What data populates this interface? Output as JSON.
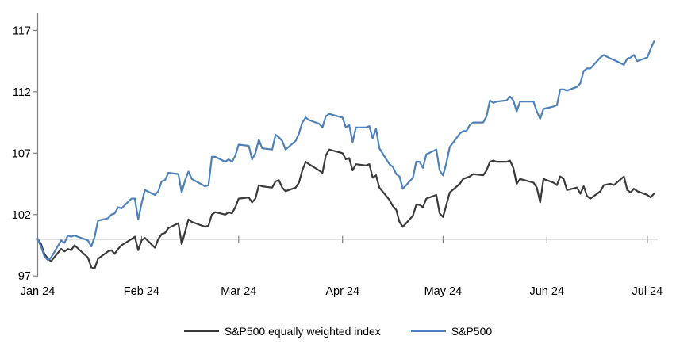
{
  "chart_data": {
    "type": "line",
    "title": "",
    "legend_position": "bottom-center",
    "background_color": "#ffffff",
    "y_axis": {
      "ticks": [
        97,
        102,
        107,
        112,
        117
      ],
      "tick_labels": [
        "97",
        "102",
        "107",
        "112",
        "117"
      ],
      "range": [
        97,
        118.6
      ],
      "axis_color": "#808080",
      "label_color": "#000000"
    },
    "x_axis": {
      "tick_labels": [
        "Jan 24",
        "Feb 24",
        "Mar 24",
        "Apr 24",
        "May 24",
        "Jun 24",
        "Jul 24"
      ],
      "month_start_days": [
        1,
        32,
        61,
        92,
        122,
        153,
        183
      ],
      "range_days": [
        1,
        186
      ],
      "axis_color": "#808080",
      "label_color": "#000000"
    },
    "baseline": {
      "value": 100,
      "color": "#a6a6a6"
    },
    "series": [
      {
        "name": "S&P500 equally weighted index",
        "color": "#3a3a3a",
        "points": [
          [
            1,
            100
          ],
          [
            2,
            99.6
          ],
          [
            3,
            98.8
          ],
          [
            4,
            98.4
          ],
          [
            5,
            98.2
          ],
          [
            8,
            99.2
          ],
          [
            9,
            99.0
          ],
          [
            10,
            99.2
          ],
          [
            11,
            99.1
          ],
          [
            12,
            99.5
          ],
          [
            16,
            98.5
          ],
          [
            17,
            97.7
          ],
          [
            18,
            97.6
          ],
          [
            19,
            98.4
          ],
          [
            22,
            99.0
          ],
          [
            23,
            99.1
          ],
          [
            24,
            98.8
          ],
          [
            25,
            99.2
          ],
          [
            26,
            99.5
          ],
          [
            29,
            100.0
          ],
          [
            30,
            100.2
          ],
          [
            31,
            99.1
          ],
          [
            32,
            99.9
          ],
          [
            33,
            100.1
          ],
          [
            36,
            99.3
          ],
          [
            37,
            100.0
          ],
          [
            38,
            100.4
          ],
          [
            39,
            100.5
          ],
          [
            40,
            100.9
          ],
          [
            43,
            101.3
          ],
          [
            44,
            99.6
          ],
          [
            45,
            100.6
          ],
          [
            46,
            101.6
          ],
          [
            47,
            101.4
          ],
          [
            51,
            101.0
          ],
          [
            52,
            101.1
          ],
          [
            53,
            102.0
          ],
          [
            54,
            102.2
          ],
          [
            57,
            102.0
          ],
          [
            58,
            102.2
          ],
          [
            59,
            102.1
          ],
          [
            60,
            102.6
          ],
          [
            61,
            103.3
          ],
          [
            64,
            103.4
          ],
          [
            65,
            103.0
          ],
          [
            66,
            103.3
          ],
          [
            67,
            104.4
          ],
          [
            68,
            104.3
          ],
          [
            71,
            104.2
          ],
          [
            72,
            104.7
          ],
          [
            73,
            104.8
          ],
          [
            74,
            104.2
          ],
          [
            75,
            103.9
          ],
          [
            78,
            104.2
          ],
          [
            79,
            104.6
          ],
          [
            80,
            105.6
          ],
          [
            81,
            106.3
          ],
          [
            82,
            106.1
          ],
          [
            85,
            105.6
          ],
          [
            86,
            105.4
          ],
          [
            87,
            106.8
          ],
          [
            88,
            107.3
          ],
          [
            92,
            107.0
          ],
          [
            93,
            106.5
          ],
          [
            94,
            106.6
          ],
          [
            95,
            105.6
          ],
          [
            96,
            106.1
          ],
          [
            99,
            106.0
          ],
          [
            100,
            106.1
          ],
          [
            101,
            105.0
          ],
          [
            102,
            105.2
          ],
          [
            103,
            104.2
          ],
          [
            106,
            103.2
          ],
          [
            107,
            102.7
          ],
          [
            108,
            102.4
          ],
          [
            109,
            101.4
          ],
          [
            110,
            101.0
          ],
          [
            113,
            101.9
          ],
          [
            114,
            102.8
          ],
          [
            115,
            102.8
          ],
          [
            116,
            102.6
          ],
          [
            117,
            103.3
          ],
          [
            120,
            103.6
          ],
          [
            121,
            102.1
          ],
          [
            122,
            101.8
          ],
          [
            123,
            102.8
          ],
          [
            124,
            103.8
          ],
          [
            127,
            104.5
          ],
          [
            128,
            104.9
          ],
          [
            129,
            105.0
          ],
          [
            130,
            105.1
          ],
          [
            131,
            105.3
          ],
          [
            134,
            105.2
          ],
          [
            135,
            105.6
          ],
          [
            136,
            106.3
          ],
          [
            137,
            106.4
          ],
          [
            138,
            106.3
          ],
          [
            141,
            106.3
          ],
          [
            142,
            106.4
          ],
          [
            143,
            105.8
          ],
          [
            144,
            104.5
          ],
          [
            145,
            104.9
          ],
          [
            149,
            104.6
          ],
          [
            150,
            104.2
          ],
          [
            151,
            103.0
          ],
          [
            152,
            104.9
          ],
          [
            155,
            104.6
          ],
          [
            156,
            104.4
          ],
          [
            157,
            105.1
          ],
          [
            158,
            104.9
          ],
          [
            159,
            104.0
          ],
          [
            162,
            104.2
          ],
          [
            163,
            103.7
          ],
          [
            164,
            104.3
          ],
          [
            165,
            103.5
          ],
          [
            166,
            103.3
          ],
          [
            169,
            103.9
          ],
          [
            170,
            104.4
          ],
          [
            172,
            104.5
          ],
          [
            173,
            104.4
          ],
          [
            176,
            105.1
          ],
          [
            177,
            104.0
          ],
          [
            178,
            103.8
          ],
          [
            179,
            104.1
          ],
          [
            180,
            103.9
          ],
          [
            183,
            103.6
          ],
          [
            184,
            103.4
          ],
          [
            185,
            103.7
          ]
        ]
      },
      {
        "name": "S&P500",
        "color": "#4e81ba",
        "points": [
          [
            1,
            100
          ],
          [
            2,
            99.4
          ],
          [
            3,
            98.6
          ],
          [
            4,
            98.3
          ],
          [
            5,
            98.5
          ],
          [
            8,
            99.9
          ],
          [
            9,
            99.7
          ],
          [
            10,
            100.3
          ],
          [
            11,
            100.2
          ],
          [
            12,
            100.3
          ],
          [
            16,
            99.9
          ],
          [
            17,
            99.4
          ],
          [
            18,
            100.2
          ],
          [
            19,
            101.5
          ],
          [
            22,
            101.7
          ],
          [
            23,
            102.0
          ],
          [
            24,
            102.1
          ],
          [
            25,
            102.6
          ],
          [
            26,
            102.5
          ],
          [
            29,
            103.3
          ],
          [
            30,
            103.3
          ],
          [
            31,
            101.6
          ],
          [
            32,
            102.9
          ],
          [
            33,
            104.0
          ],
          [
            36,
            103.6
          ],
          [
            37,
            103.9
          ],
          [
            38,
            104.7
          ],
          [
            39,
            104.8
          ],
          [
            40,
            105.4
          ],
          [
            43,
            105.3
          ],
          [
            44,
            103.8
          ],
          [
            45,
            104.8
          ],
          [
            46,
            105.5
          ],
          [
            47,
            104.9
          ],
          [
            51,
            104.3
          ],
          [
            52,
            104.4
          ],
          [
            53,
            106.7
          ],
          [
            54,
            106.7
          ],
          [
            57,
            106.3
          ],
          [
            58,
            106.5
          ],
          [
            59,
            106.3
          ],
          [
            60,
            106.8
          ],
          [
            61,
            107.7
          ],
          [
            64,
            107.6
          ],
          [
            65,
            106.5
          ],
          [
            66,
            107.0
          ],
          [
            67,
            108.1
          ],
          [
            68,
            107.4
          ],
          [
            71,
            107.3
          ],
          [
            72,
            108.5
          ],
          [
            73,
            108.3
          ],
          [
            74,
            108.0
          ],
          [
            75,
            107.3
          ],
          [
            78,
            108.0
          ],
          [
            79,
            108.6
          ],
          [
            80,
            109.5
          ],
          [
            81,
            109.9
          ],
          [
            82,
            109.7
          ],
          [
            85,
            109.4
          ],
          [
            86,
            109.1
          ],
          [
            87,
            110.0
          ],
          [
            88,
            110.2
          ],
          [
            92,
            109.9
          ],
          [
            93,
            109.1
          ],
          [
            94,
            109.3
          ],
          [
            95,
            107.9
          ],
          [
            96,
            109.1
          ],
          [
            99,
            109.1
          ],
          [
            100,
            109.2
          ],
          [
            101,
            108.2
          ],
          [
            102,
            109.0
          ],
          [
            103,
            107.4
          ],
          [
            106,
            106.1
          ],
          [
            107,
            105.9
          ],
          [
            108,
            105.3
          ],
          [
            109,
            105.1
          ],
          [
            110,
            104.1
          ],
          [
            113,
            105.0
          ],
          [
            114,
            106.3
          ],
          [
            115,
            106.3
          ],
          [
            116,
            105.8
          ],
          [
            117,
            106.9
          ],
          [
            120,
            107.3
          ],
          [
            121,
            105.6
          ],
          [
            122,
            105.2
          ],
          [
            123,
            106.2
          ],
          [
            124,
            107.5
          ],
          [
            127,
            108.6
          ],
          [
            128,
            108.8
          ],
          [
            129,
            108.8
          ],
          [
            130,
            109.3
          ],
          [
            131,
            109.5
          ],
          [
            134,
            109.5
          ],
          [
            135,
            110.0
          ],
          [
            136,
            111.3
          ],
          [
            137,
            111.1
          ],
          [
            138,
            111.2
          ],
          [
            141,
            111.3
          ],
          [
            142,
            111.6
          ],
          [
            143,
            111.3
          ],
          [
            144,
            110.4
          ],
          [
            145,
            111.2
          ],
          [
            149,
            111.2
          ],
          [
            150,
            110.4
          ],
          [
            151,
            109.8
          ],
          [
            152,
            110.6
          ],
          [
            155,
            110.8
          ],
          [
            156,
            110.9
          ],
          [
            157,
            112.2
          ],
          [
            158,
            112.2
          ],
          [
            159,
            112.1
          ],
          [
            162,
            112.4
          ],
          [
            163,
            112.7
          ],
          [
            164,
            113.7
          ],
          [
            165,
            113.9
          ],
          [
            166,
            113.9
          ],
          [
            169,
            114.8
          ],
          [
            170,
            115.0
          ],
          [
            172,
            114.7
          ],
          [
            173,
            114.6
          ],
          [
            176,
            114.2
          ],
          [
            177,
            114.7
          ],
          [
            178,
            114.8
          ],
          [
            179,
            115.0
          ],
          [
            180,
            114.5
          ],
          [
            183,
            114.8
          ],
          [
            184,
            115.5
          ],
          [
            185,
            116.1
          ]
        ]
      }
    ]
  }
}
